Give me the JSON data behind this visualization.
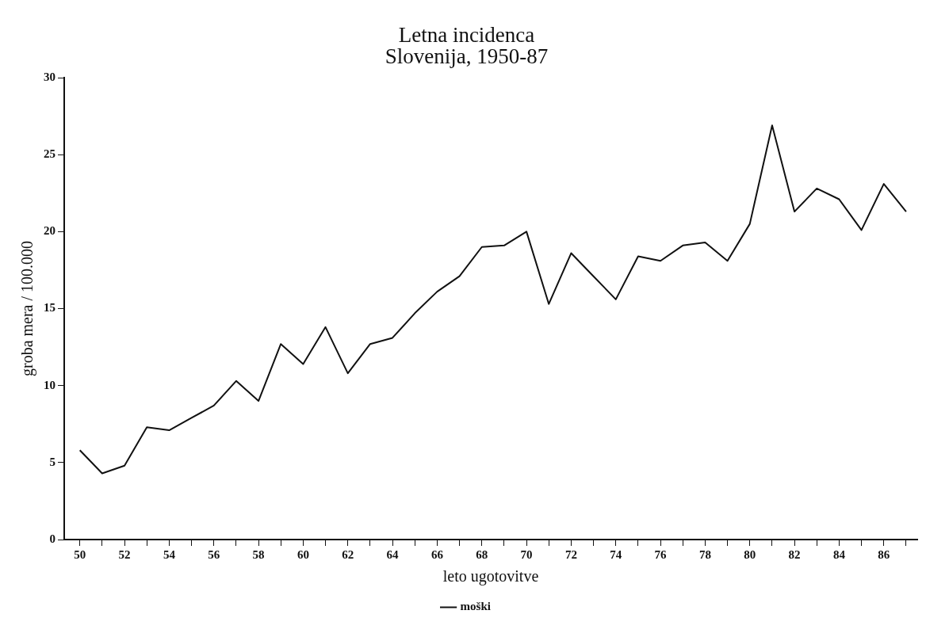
{
  "chart_data": {
    "type": "line",
    "title": [
      "Letna incidenca",
      "Slovenija, 1950-87"
    ],
    "xlabel": "leto ugotovitve",
    "ylabel": "groba mera / 100.000",
    "x": [
      50,
      51,
      52,
      53,
      54,
      55,
      56,
      57,
      58,
      59,
      60,
      61,
      62,
      63,
      64,
      65,
      66,
      67,
      68,
      69,
      70,
      71,
      72,
      73,
      74,
      75,
      76,
      77,
      78,
      79,
      80,
      81,
      82,
      83,
      84,
      85,
      86,
      87
    ],
    "series": [
      {
        "name": "moški",
        "color": "#111111",
        "values": [
          5.8,
          4.3,
          4.8,
          7.3,
          7.1,
          7.9,
          8.7,
          10.3,
          9.0,
          12.7,
          11.4,
          13.8,
          10.8,
          12.7,
          13.1,
          14.7,
          16.1,
          17.1,
          19.0,
          19.1,
          20.0,
          15.3,
          18.6,
          17.1,
          15.6,
          18.4,
          18.1,
          19.1,
          19.3,
          18.1,
          20.5,
          26.9,
          21.3,
          22.8,
          22.1,
          20.1,
          23.1,
          21.3
        ]
      }
    ],
    "xlim": [
      49.3,
      87.5
    ],
    "ylim": [
      0,
      30
    ],
    "xticks": [
      50,
      {
        "value": 51,
        "label": null
      },
      52,
      {
        "value": 53,
        "label": null
      },
      54,
      {
        "value": 55,
        "label": null
      },
      56,
      {
        "value": 57,
        "label": null
      },
      58,
      {
        "value": 59,
        "label": null
      },
      60,
      {
        "value": 61,
        "label": null
      },
      62,
      {
        "value": 63,
        "label": null
      },
      64,
      {
        "value": 65,
        "label": null
      },
      66,
      {
        "value": 67,
        "label": null
      },
      68,
      {
        "value": 69,
        "label": null
      },
      70,
      {
        "value": 71,
        "label": null
      },
      72,
      {
        "value": 73,
        "label": null
      },
      74,
      {
        "value": 75,
        "label": null
      },
      76,
      {
        "value": 77,
        "label": null
      },
      78,
      {
        "value": 79,
        "label": null
      },
      80,
      {
        "value": 81,
        "label": null
      },
      82,
      {
        "value": 83,
        "label": null
      },
      84,
      {
        "value": 85,
        "label": null
      },
      86,
      {
        "value": 87,
        "label": null
      }
    ],
    "yticks": [
      0,
      5,
      10,
      15,
      20,
      25,
      30
    ],
    "grid": false,
    "legend": "bottom",
    "marker": "none",
    "line_style": "solid"
  }
}
